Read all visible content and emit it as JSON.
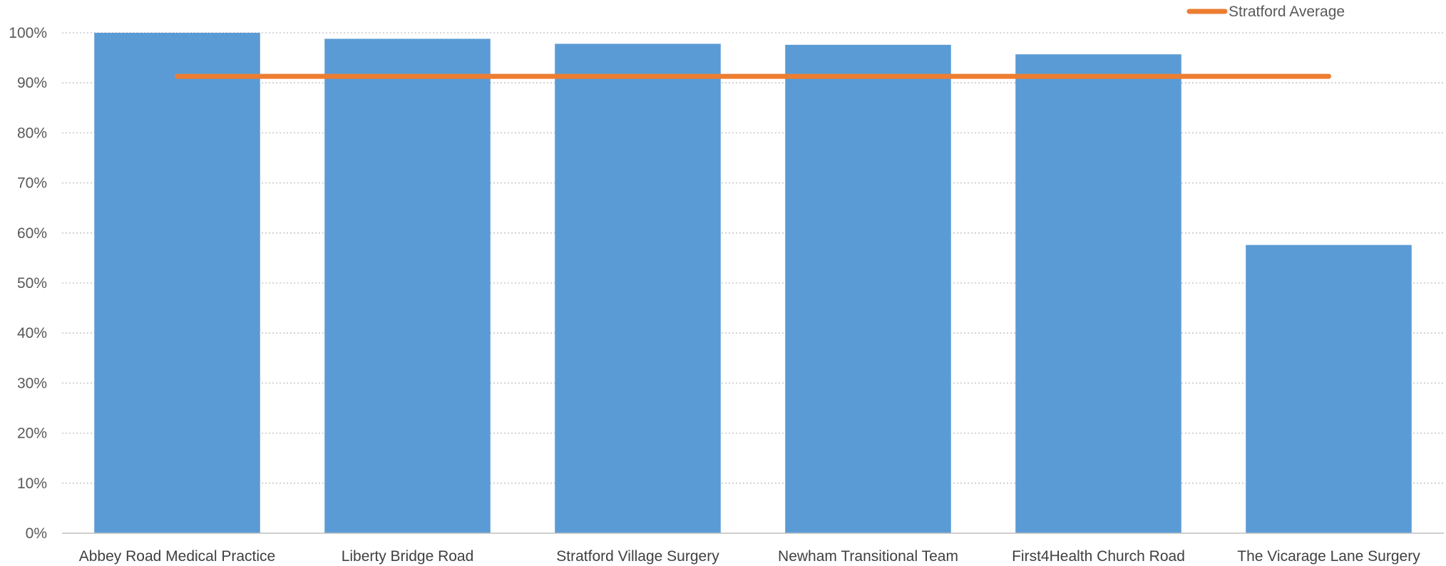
{
  "chart_data": {
    "type": "bar",
    "categories": [
      "Abbey Road Medical Practice",
      "Liberty Bridge Road",
      "Stratford Village Surgery",
      "Newham Transitional Team",
      "First4Health Church Road",
      "The Vicarage Lane Surgery"
    ],
    "values": [
      100,
      98.8,
      97.8,
      97.6,
      95.7,
      57.6
    ],
    "overlay_series": [
      {
        "name": "Stratford Average",
        "type": "line",
        "value": 91.3
      }
    ],
    "y_ticks": [
      "0%",
      "10%",
      "20%",
      "30%",
      "40%",
      "50%",
      "60%",
      "70%",
      "80%",
      "90%",
      "100%"
    ],
    "ylim": [
      0,
      100
    ],
    "grid": true,
    "legend": "top-right",
    "colors": {
      "bar": "#5b9bd5",
      "line": "#ed7d31",
      "grid": "#bfbfbf",
      "axis": "#bfbfbf"
    }
  }
}
